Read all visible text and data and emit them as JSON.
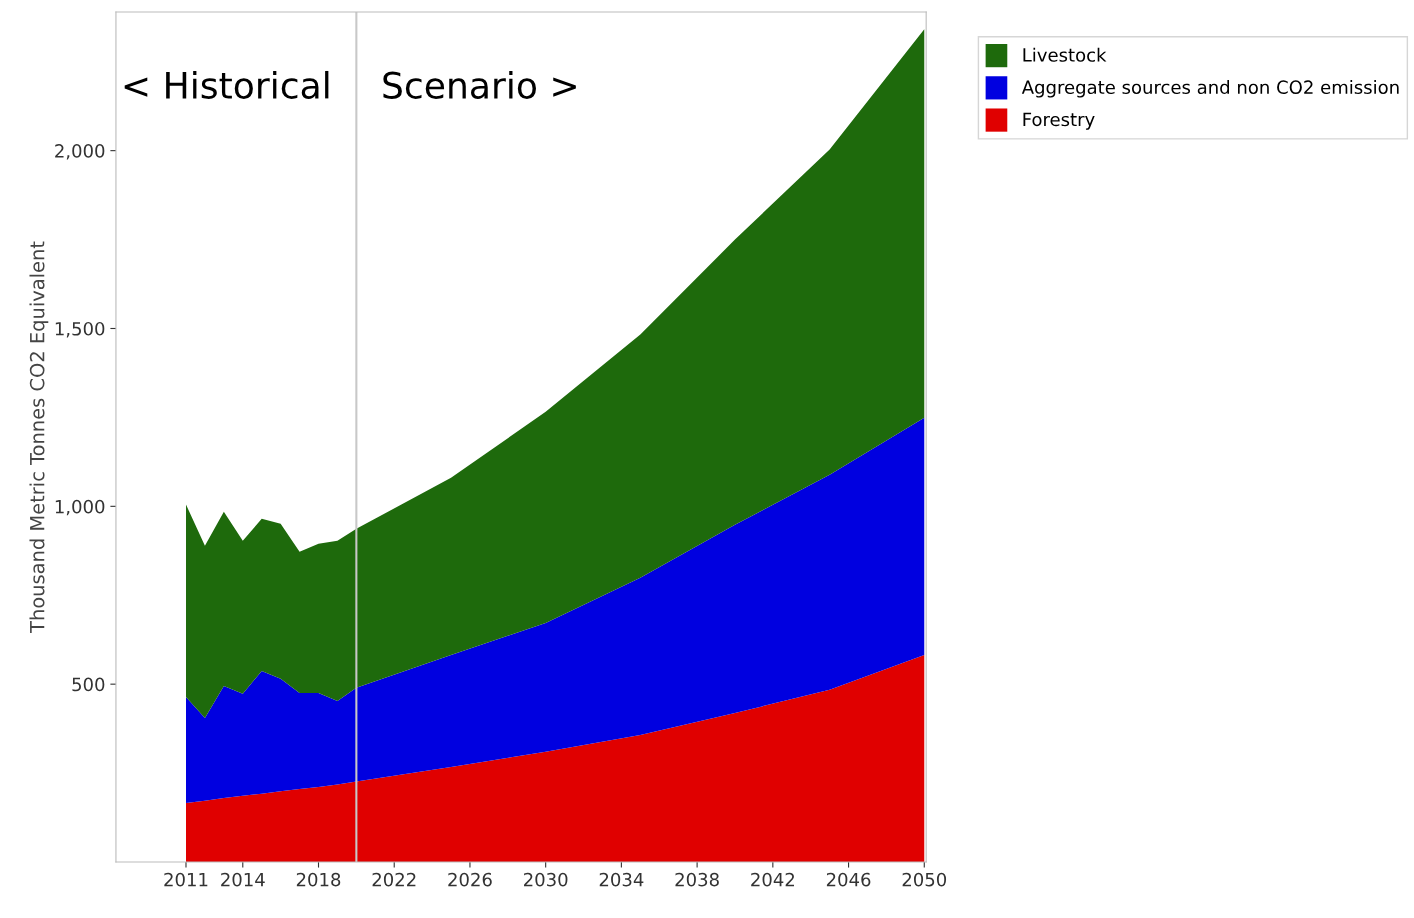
{
  "chart_data": {
    "type": "area",
    "stacked": true,
    "ylabel": "Thousand Metric Tonnes CO2 Equivalent",
    "x": [
      2011,
      2012,
      2013,
      2014,
      2015,
      2016,
      2017,
      2018,
      2019,
      2020,
      2025,
      2030,
      2035,
      2040,
      2045,
      2050
    ],
    "series": [
      {
        "name": "Forestry",
        "color": "#e00000",
        "values": [
          166,
          172,
          180,
          186,
          192,
          199,
          205,
          211,
          218,
          226,
          267,
          310,
          357,
          419,
          484,
          582
        ]
      },
      {
        "name": "Aggregate sources and non CO2 emission",
        "color": "#0000e0",
        "values": [
          298,
          233,
          315,
          287,
          345,
          316,
          270,
          264,
          235,
          264,
          315,
          362,
          442,
          529,
          605,
          667
        ]
      },
      {
        "name": "Livestock",
        "color": "#1e6a0c",
        "values": [
          541,
          484,
          490,
          430,
          428,
          436,
          397,
          420,
          450,
          447,
          498,
          594,
          684,
          802,
          914,
          1092
        ]
      }
    ],
    "xlim": [
      2007.3,
      2050.1
    ],
    "xticks": [
      2011,
      2014,
      2018,
      2022,
      2026,
      2030,
      2034,
      2038,
      2042,
      2046,
      2050
    ],
    "ylim": [
      0,
      2390
    ],
    "yticks": [
      {
        "value": 500,
        "label": "500"
      },
      {
        "value": 1000,
        "label": "1,000"
      },
      {
        "value": 1500,
        "label": "1,500"
      },
      {
        "value": 2000,
        "label": "2,000"
      }
    ],
    "ref_lines": [
      {
        "axis": "x",
        "value": 2020,
        "color": "#c8c8c8"
      }
    ],
    "annotations": [
      "< Historical",
      "Scenario >"
    ],
    "legend": "top right",
    "grid": false
  }
}
